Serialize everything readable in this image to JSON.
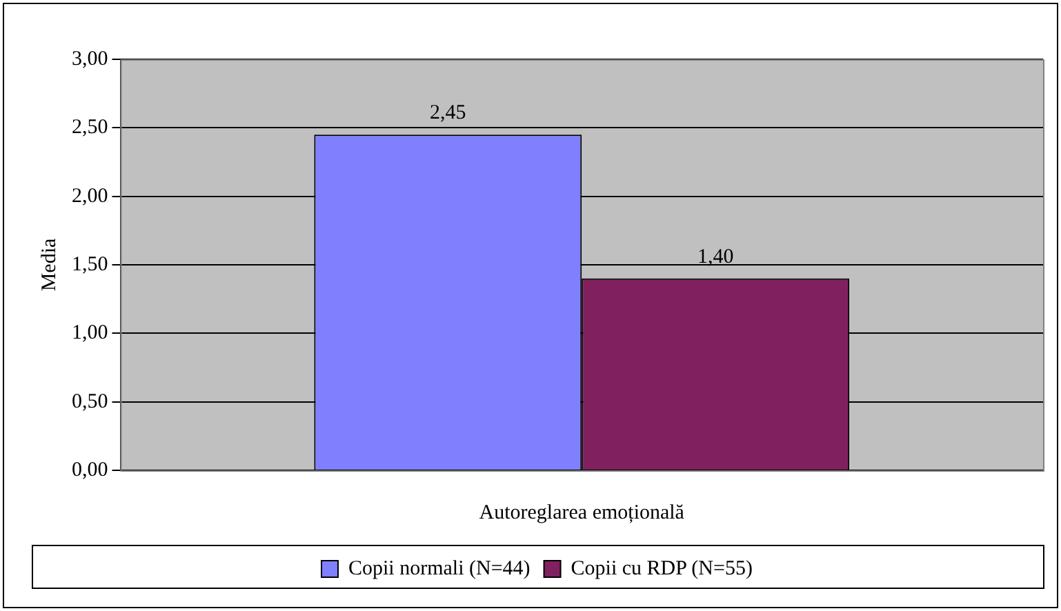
{
  "chart_data": {
    "type": "bar",
    "ylabel": "Media",
    "categories": [
      "Autoreglarea emoțională"
    ],
    "series": [
      {
        "name": "Copii normali (N=44)",
        "color": "#8080ff",
        "values": [
          2.45
        ],
        "value_labels": [
          "2,45"
        ]
      },
      {
        "name": "Copii cu RDP (N=55)",
        "color": "#80205f",
        "values": [
          1.4
        ],
        "value_labels": [
          "1,40"
        ]
      }
    ],
    "ylim": [
      0,
      3
    ],
    "yticks": [
      {
        "value": 0,
        "label": "0,00"
      },
      {
        "value": 0.5,
        "label": "0,50"
      },
      {
        "value": 1,
        "label": "1,00"
      },
      {
        "value": 1.5,
        "label": "1,50"
      },
      {
        "value": 2,
        "label": "2,00"
      },
      {
        "value": 2.5,
        "label": "2,50"
      },
      {
        "value": 3,
        "label": "3,00"
      }
    ],
    "grid": "y",
    "legend": "bottom"
  }
}
